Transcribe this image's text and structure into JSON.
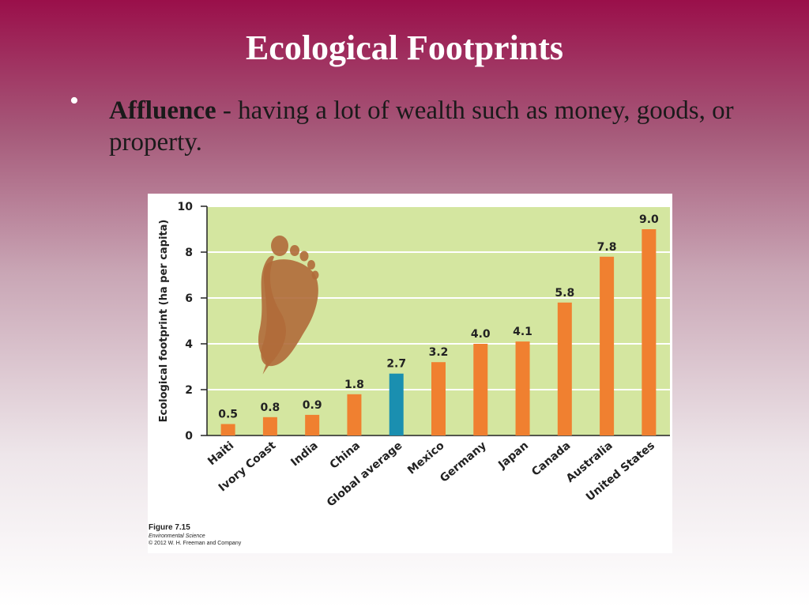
{
  "slide": {
    "title": "Ecological Footprints",
    "bullet_term": "Affluence",
    "bullet_definition": " - having a lot of wealth such as money, goods, or property."
  },
  "figure": {
    "number": "Figure 7.15",
    "source": "Environmental Science",
    "copyright": "© 2012 W. H. Freeman and Company"
  },
  "chart_data": {
    "type": "bar",
    "ylabel": "Ecological footprint (ha per capita)",
    "xlabel": "",
    "ylim": [
      0,
      10
    ],
    "yticks": [
      0,
      2,
      4,
      6,
      8,
      10
    ],
    "grid": true,
    "categories": [
      "Haiti",
      "Ivory Coast",
      "India",
      "China",
      "Global average",
      "Mexico",
      "Germany",
      "Japan",
      "Canada",
      "Australia",
      "United States"
    ],
    "values": [
      0.5,
      0.8,
      0.9,
      1.8,
      2.7,
      3.2,
      4.0,
      4.1,
      5.8,
      7.8,
      9.0
    ],
    "value_labels": [
      "0.5",
      "0.8",
      "0.9",
      "1.8",
      "2.7",
      "3.2",
      "4.0",
      "4.1",
      "5.8",
      "7.8",
      "9.0"
    ],
    "colors": {
      "bar": "#f08030",
      "highlight_bar": "#1a8fb0",
      "highlight_category": "Global average",
      "plot_background": "#d4e6a0",
      "gridline": "#ffffff",
      "footprint": "#b06a3a"
    }
  }
}
